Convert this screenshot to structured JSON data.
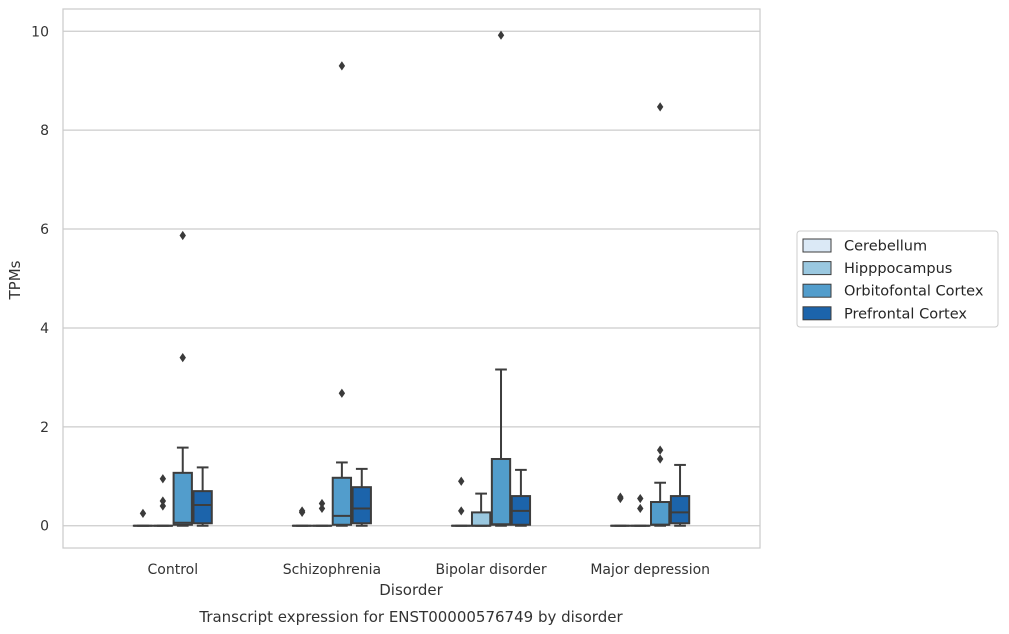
{
  "chart_data": {
    "type": "box",
    "caption": "Transcript expression for ENST00000576749 by disorder",
    "xlabel": "Disorder",
    "ylabel": "TPMs",
    "ylim": [
      -0.45,
      10.45
    ],
    "yticks": [
      0,
      2,
      4,
      6,
      8,
      10
    ],
    "grid": "horizontal",
    "legend_position": "right",
    "categories": [
      "Control",
      "Schizophrenia",
      "Bipolar disorder",
      "Major depression"
    ],
    "series": [
      {
        "name": "Cerebellum",
        "color": "#dbe9f6",
        "boxes": [
          {
            "whislo": 0,
            "q1": 0,
            "med": 0,
            "q3": 0,
            "whishi": 0,
            "fliers": [
              0.25
            ]
          },
          {
            "whislo": 0,
            "q1": 0,
            "med": 0,
            "q3": 0,
            "whishi": 0,
            "fliers": [
              0.27,
              0.3
            ]
          },
          {
            "whislo": 0,
            "q1": 0,
            "med": 0,
            "q3": 0,
            "whishi": 0,
            "fliers": [
              0.3,
              0.9
            ]
          },
          {
            "whislo": 0,
            "q1": 0,
            "med": 0,
            "q3": 0,
            "whishi": 0,
            "fliers": [
              0.55,
              0.58
            ]
          }
        ]
      },
      {
        "name": "Hipppocampus",
        "color": "#9ac8e0",
        "boxes": [
          {
            "whislo": 0,
            "q1": 0,
            "med": 0,
            "q3": 0,
            "whishi": 0,
            "fliers": [
              0.4,
              0.5,
              0.95
            ]
          },
          {
            "whislo": 0,
            "q1": 0,
            "med": 0,
            "q3": 0,
            "whishi": 0,
            "fliers": [
              0.35,
              0.45
            ]
          },
          {
            "whislo": 0,
            "q1": 0,
            "med": 0,
            "q3": 0.27,
            "whishi": 0.65,
            "fliers": []
          },
          {
            "whislo": 0,
            "q1": 0,
            "med": 0,
            "q3": 0,
            "whishi": 0,
            "fliers": [
              0.35,
              0.55
            ]
          }
        ]
      },
      {
        "name": "Orbitofontal Cortex",
        "color": "#529dcc",
        "boxes": [
          {
            "whislo": 0,
            "q1": 0.02,
            "med": 0.06,
            "q3": 1.07,
            "whishi": 1.58,
            "fliers": [
              3.4,
              5.87
            ]
          },
          {
            "whislo": 0,
            "q1": 0.02,
            "med": 0.2,
            "q3": 0.97,
            "whishi": 1.28,
            "fliers": [
              2.68,
              9.3
            ]
          },
          {
            "whislo": 0,
            "q1": 0.02,
            "med": 0.03,
            "q3": 1.35,
            "whishi": 3.16,
            "fliers": [
              9.92
            ]
          },
          {
            "whislo": 0,
            "q1": 0.02,
            "med": 0.02,
            "q3": 0.48,
            "whishi": 0.87,
            "fliers": [
              1.35,
              1.53,
              8.47
            ]
          }
        ]
      },
      {
        "name": "Prefrontal Cortex",
        "color": "#1c64ab",
        "boxes": [
          {
            "whislo": 0,
            "q1": 0.05,
            "med": 0.42,
            "q3": 0.7,
            "whishi": 1.18,
            "fliers": []
          },
          {
            "whislo": 0,
            "q1": 0.05,
            "med": 0.35,
            "q3": 0.78,
            "whishi": 1.15,
            "fliers": []
          },
          {
            "whislo": 0,
            "q1": 0.02,
            "med": 0.3,
            "q3": 0.6,
            "whishi": 1.13,
            "fliers": []
          },
          {
            "whislo": 0,
            "q1": 0.05,
            "med": 0.27,
            "q3": 0.6,
            "whishi": 1.23,
            "fliers": []
          }
        ]
      }
    ]
  }
}
